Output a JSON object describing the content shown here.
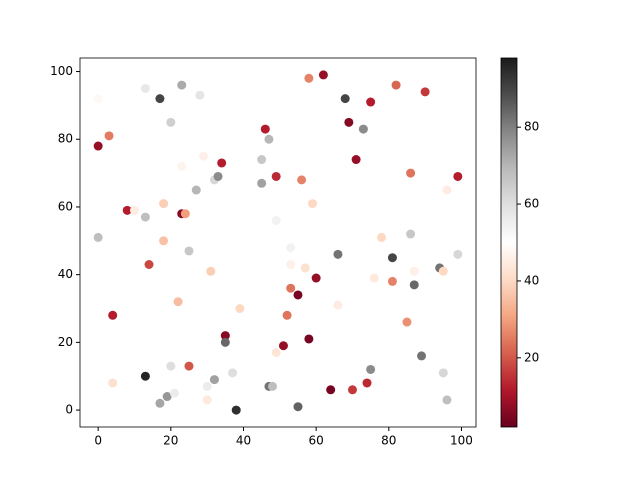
{
  "chart_data": {
    "type": "scatter",
    "x": [
      0,
      3,
      0,
      0,
      4,
      4,
      8,
      10,
      13,
      13,
      14,
      13,
      17,
      18,
      18,
      17,
      19,
      20,
      20,
      21,
      22,
      23,
      23,
      23,
      24,
      25,
      25,
      27,
      28,
      29,
      30,
      30,
      31,
      32,
      32,
      33,
      34,
      35,
      35,
      35,
      37,
      38,
      39,
      45,
      45,
      46,
      47,
      47,
      48,
      49,
      49,
      49,
      51,
      52,
      53,
      53,
      53,
      55,
      55,
      56,
      57,
      58,
      58,
      59,
      60,
      62,
      64,
      66,
      66,
      68,
      69,
      70,
      71,
      73,
      74,
      75,
      75,
      76,
      78,
      81,
      81,
      82,
      85,
      86,
      86,
      87,
      87,
      88,
      89,
      90,
      94,
      95,
      95,
      96,
      96,
      99,
      99
    ],
    "values": [
      92,
      81,
      78,
      51,
      28,
      8,
      59,
      59,
      95,
      57,
      43,
      10,
      92,
      61,
      50,
      2,
      4,
      85,
      13,
      5,
      32,
      96,
      72,
      58,
      58,
      47,
      13,
      65,
      93,
      75,
      7,
      3,
      41,
      68,
      9,
      69,
      73,
      22,
      20,
      13,
      11,
      0,
      30,
      74,
      67,
      83,
      80,
      7,
      7,
      69,
      56,
      17,
      19,
      28,
      48,
      43,
      36,
      34,
      1,
      68,
      42,
      98,
      21,
      61,
      39,
      99,
      6,
      46,
      31,
      92,
      85,
      6,
      74,
      83,
      8,
      91,
      12,
      39,
      51,
      45,
      38,
      96,
      26,
      70,
      52,
      41,
      37,
      44,
      16,
      94,
      42,
      41,
      11,
      65,
      3,
      69,
      46
    ],
    "c": [
      48,
      25,
      8,
      68,
      12,
      42,
      12,
      45,
      57,
      68,
      18,
      96,
      90,
      38,
      36,
      73,
      76,
      64,
      60,
      56,
      35,
      72,
      47,
      6,
      30,
      66,
      20,
      70,
      58,
      46,
      56,
      44,
      38,
      62,
      74,
      78,
      12,
      6,
      84,
      50,
      60,
      94,
      40,
      66,
      74,
      12,
      70,
      82,
      68,
      14,
      54,
      43,
      8,
      24,
      54,
      46,
      24,
      4,
      85,
      26,
      42,
      26,
      4,
      40,
      8,
      8,
      4,
      82,
      45,
      90,
      6,
      16,
      8,
      78,
      14,
      12,
      78,
      44,
      40,
      90,
      26,
      22,
      28,
      24,
      66,
      46,
      84,
      50,
      82,
      16,
      82,
      40,
      62,
      45,
      68,
      12,
      62
    ],
    "xlim": [
      -5,
      104
    ],
    "ylim": [
      -5,
      104
    ],
    "xticks": [
      0,
      20,
      40,
      60,
      80,
      100
    ],
    "yticks": [
      0,
      20,
      40,
      60,
      80,
      100
    ],
    "colormap": [
      "#67001f",
      "#b2182b",
      "#d6604d",
      "#f4a582",
      "#fddbc7",
      "#ffffff",
      "#e0e0e0",
      "#bababa",
      "#878787",
      "#4d4d4d",
      "#1a1a1a"
    ],
    "colorbar": {
      "lim": [
        2,
        98
      ],
      "ticks": [
        20,
        40,
        60,
        80
      ]
    }
  }
}
